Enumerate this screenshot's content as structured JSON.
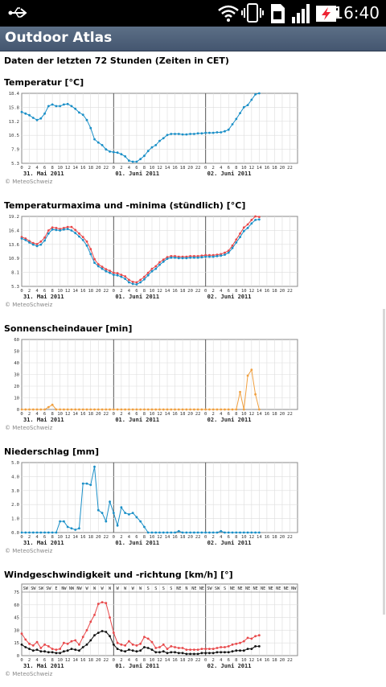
{
  "status_bar": {
    "time": "16:40",
    "icons": [
      "usb-icon",
      "wifi-icon",
      "vibrate-icon",
      "sim-icon",
      "signal-icon",
      "battery-charging-icon"
    ]
  },
  "app": {
    "title": "Outdoor Atlas"
  },
  "header": "Daten der letzten 72 Stunden (Zeiten in CET)",
  "copyright": "© MeteoSchweiz",
  "x_axis": {
    "hour_labels": [
      "0",
      "2",
      "4",
      "6",
      "8",
      "10",
      "12",
      "14",
      "16",
      "18",
      "20",
      "22",
      "0",
      "2",
      "4",
      "6",
      "8",
      "10",
      "12",
      "14",
      "16",
      "18",
      "20",
      "22",
      "0",
      "2",
      "4",
      "6",
      "8",
      "10",
      "12",
      "14",
      "16",
      "18",
      "20",
      "22"
    ],
    "day_labels": [
      "31. Mai 2011",
      "01. Juni 2011",
      "02. Juni 2011"
    ]
  },
  "colors": {
    "blue": "#1a8fc7",
    "red": "#e8484a",
    "orange": "#f0a040",
    "black": "#111111",
    "grid": "#dddddd"
  },
  "chart_data": [
    {
      "type": "line",
      "title": "Temperatur [°C]",
      "ylim": [
        5.3,
        18.4
      ],
      "yticks": [
        "18.4",
        "15.8",
        "13.2",
        "10.5",
        "7.9",
        "5.3"
      ],
      "series": [
        {
          "color": "#1a8fc7",
          "values": [
            14.9,
            14.6,
            14.3,
            13.8,
            13.4,
            13.7,
            14.6,
            16.0,
            16.3,
            16.0,
            16.0,
            16.3,
            16.4,
            16.0,
            15.5,
            14.8,
            14.4,
            13.4,
            11.9,
            9.8,
            9.2,
            8.7,
            7.9,
            7.5,
            7.4,
            7.3,
            7.0,
            6.6,
            5.8,
            5.6,
            5.6,
            6.1,
            6.7,
            7.6,
            8.3,
            8.7,
            9.5,
            10.0,
            10.6,
            10.8,
            10.8,
            10.8,
            10.7,
            10.7,
            10.8,
            10.8,
            10.9,
            10.9,
            11.0,
            11.0,
            11.0,
            11.1,
            11.1,
            11.3,
            11.6,
            12.6,
            13.6,
            14.7,
            15.8,
            16.2,
            17.2,
            18.2,
            18.4
          ]
        }
      ]
    },
    {
      "type": "line",
      "title": "Temperaturmaxima und -minima (stündlich) [°C]",
      "ylim": [
        5.3,
        19.2
      ],
      "yticks": [
        "19.2",
        "16.4",
        "13.6",
        "10.9",
        "8.1",
        "5.3"
      ],
      "series": [
        {
          "color": "#e8484a",
          "values": [
            15.1,
            14.8,
            14.3,
            13.9,
            13.7,
            14.2,
            15.0,
            16.4,
            17.0,
            16.9,
            16.7,
            16.9,
            17.1,
            17.1,
            16.5,
            15.8,
            15.1,
            14.2,
            12.7,
            10.7,
            9.7,
            9.2,
            8.7,
            8.4,
            8.0,
            7.9,
            7.6,
            7.3,
            6.6,
            6.2,
            6.1,
            6.6,
            7.2,
            8.0,
            8.8,
            9.3,
            10.1,
            10.6,
            11.1,
            11.3,
            11.3,
            11.2,
            11.2,
            11.2,
            11.3,
            11.3,
            11.3,
            11.4,
            11.5,
            11.5,
            11.5,
            11.6,
            11.7,
            12.0,
            12.4,
            13.4,
            14.6,
            15.8,
            17.0,
            17.6,
            18.5,
            19.2,
            19.1
          ]
        },
        {
          "color": "#1a8fc7",
          "values": [
            14.8,
            14.5,
            14.0,
            13.6,
            13.3,
            13.6,
            14.4,
            15.8,
            16.6,
            16.5,
            16.4,
            16.6,
            16.7,
            16.4,
            15.9,
            15.2,
            14.5,
            13.4,
            11.7,
            10.0,
            9.3,
            8.8,
            8.3,
            8.0,
            7.6,
            7.5,
            7.2,
            6.8,
            6.1,
            5.8,
            5.7,
            6.1,
            6.7,
            7.5,
            8.3,
            8.8,
            9.6,
            10.2,
            10.8,
            11.0,
            11.0,
            10.9,
            10.9,
            10.9,
            11.0,
            11.0,
            11.0,
            11.1,
            11.2,
            11.2,
            11.2,
            11.3,
            11.4,
            11.6,
            12.0,
            12.9,
            14.0,
            15.1,
            16.3,
            16.9,
            17.8,
            18.5,
            18.6
          ]
        }
      ]
    },
    {
      "type": "line",
      "title": "Sonnenscheindauer [min]",
      "ylim": [
        0,
        60
      ],
      "yticks": [
        "60",
        "50",
        "40",
        "30",
        "20",
        "10",
        "0"
      ],
      "series": [
        {
          "color": "#f0a040",
          "values": [
            0,
            0,
            0,
            0,
            0,
            0,
            0,
            2,
            4,
            0,
            0,
            0,
            0,
            0,
            0,
            0,
            0,
            0,
            0,
            0,
            0,
            0,
            0,
            0,
            0,
            0,
            0,
            0,
            0,
            0,
            0,
            0,
            0,
            0,
            0,
            0,
            0,
            0,
            0,
            0,
            0,
            0,
            0,
            0,
            0,
            0,
            0,
            0,
            0,
            0,
            0,
            0,
            0,
            0,
            0,
            0,
            0,
            15,
            0,
            29,
            34,
            13,
            0
          ]
        }
      ]
    },
    {
      "type": "line",
      "title": "Niederschlag [mm]",
      "ylim": [
        0,
        5.0
      ],
      "yticks": [
        "5.0",
        "4.0",
        "3.0",
        "2.0",
        "1.0",
        "0.0"
      ],
      "series": [
        {
          "color": "#1a8fc7",
          "values": [
            0,
            0,
            0,
            0,
            0,
            0,
            0,
            0,
            0,
            0,
            0.8,
            0.8,
            0.4,
            0.3,
            0.2,
            0.3,
            3.5,
            3.5,
            3.4,
            4.7,
            1.6,
            1.4,
            0.8,
            2.2,
            1.4,
            0.5,
            1.8,
            1.4,
            1.3,
            1.4,
            1.1,
            0.8,
            0.4,
            0,
            0,
            0,
            0,
            0,
            0,
            0,
            0,
            0.1,
            0,
            0,
            0,
            0,
            0,
            0,
            0,
            0,
            0,
            0,
            0.1,
            0,
            0,
            0,
            0,
            0,
            0,
            0,
            0,
            0,
            0
          ]
        }
      ]
    },
    {
      "type": "line",
      "title": "Windgeschwindigkeit und -richtung [km/h] [°]",
      "ylim": [
        0,
        75
      ],
      "yticks": [
        "75",
        "60",
        "45",
        "30",
        "15",
        "0"
      ],
      "directions": [
        "SW",
        "SW",
        "SW",
        "SW",
        "E",
        "NW",
        "NW",
        "NW",
        "W",
        "W",
        "W",
        "W",
        "W",
        "W",
        "W",
        "W",
        "S",
        "S",
        "S",
        "S",
        "NE",
        "N",
        "NE",
        "NE",
        "SW",
        "SW",
        "S",
        "NE",
        "NE",
        "NE",
        "NE",
        "NE",
        "NE",
        "NE",
        "NE",
        "NW"
      ],
      "series": [
        {
          "color": "#e8484a",
          "values": [
            26,
            19,
            14,
            12,
            16,
            9,
            13,
            11,
            8,
            7,
            8,
            15,
            14,
            17,
            18,
            13,
            22,
            30,
            40,
            48,
            61,
            63,
            62,
            45,
            27,
            15,
            13,
            12,
            17,
            13,
            12,
            14,
            22,
            20,
            16,
            9,
            10,
            13,
            8,
            11,
            10,
            9,
            9,
            7,
            7,
            7,
            7,
            8,
            8,
            8,
            8,
            9,
            10,
            10,
            11,
            13,
            14,
            15,
            17,
            21,
            20,
            23,
            24
          ]
        },
        {
          "color": "#111111",
          "values": [
            13,
            10,
            8,
            6,
            7,
            5,
            5,
            4,
            4,
            3,
            3,
            5,
            6,
            8,
            7,
            6,
            10,
            13,
            18,
            24,
            27,
            29,
            28,
            23,
            13,
            8,
            6,
            5,
            7,
            6,
            5,
            6,
            10,
            9,
            7,
            4,
            4,
            5,
            3,
            4,
            4,
            3,
            3,
            2,
            2,
            2,
            2,
            3,
            3,
            3,
            3,
            4,
            4,
            4,
            4,
            5,
            6,
            6,
            6,
            8,
            8,
            11,
            11
          ]
        }
      ]
    }
  ]
}
